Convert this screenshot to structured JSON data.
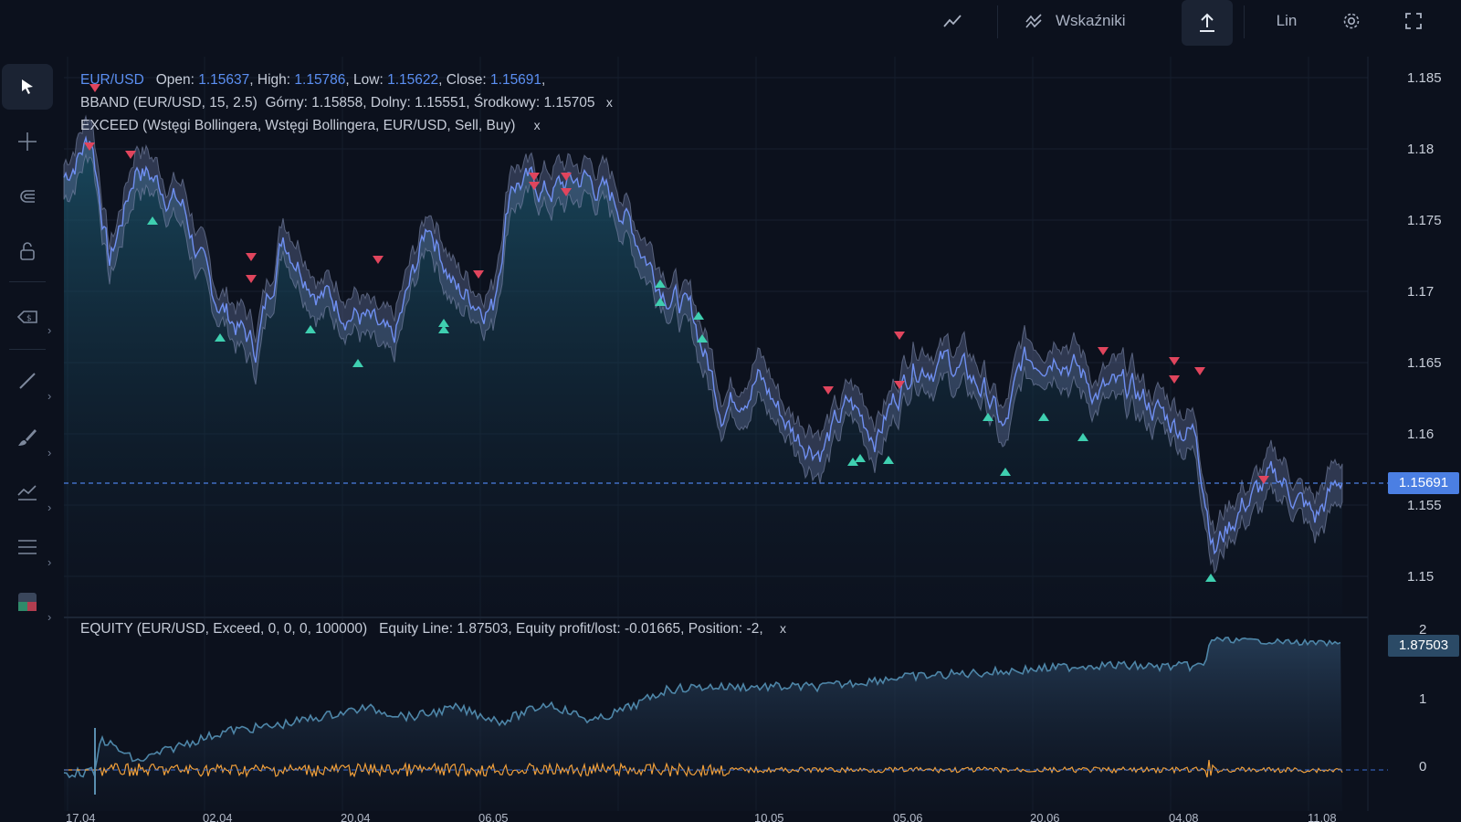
{
  "toolbar": {
    "indicators_label": "Wskaźniki",
    "scale_label": "Lin"
  },
  "left_tools": [
    "cursor-icon",
    "crosshair-icon",
    "magnet-icon",
    "lock-icon",
    "price-label-icon",
    "trendline-icon",
    "brush-icon",
    "indicator-icon",
    "lines-icon",
    "template-icon"
  ],
  "legend": {
    "symbol": "EUR/USD",
    "open_label": "Open:",
    "open": "1.15637",
    "high_label": "High:",
    "high": "1.15786",
    "low_label": "Low:",
    "low": "1.15622",
    "close_label": "Close:",
    "close": "1.15691",
    "bband_label": "BBAND (EUR/USD, 15, 2.5)",
    "upper_label": "Górny:",
    "upper": "1.15858",
    "lower_label": "Dolny:",
    "lower": "1.15551",
    "mid_label": "Środkowy:",
    "mid": "1.15705",
    "exceed_label": "EXCEED (Wstęgi Bollingera, Wstęgi Bollingera, EUR/USD, Sell, Buy)",
    "close_x": "x"
  },
  "equity_legend": {
    "label": "EQUITY (EUR/USD, Exceed, 0, 0, 0, 100000)",
    "equity_line_label": "Equity Line:",
    "equity_line": "1.87503",
    "profit_label": "Equity profit/lost:",
    "profit": "-0.01665",
    "position_label": "Position:",
    "position": "-2,",
    "close_x": "x"
  },
  "price_axis": [
    "1.185",
    "1.18",
    "1.175",
    "1.17",
    "1.165",
    "1.16",
    "1.155",
    "1.15"
  ],
  "equity_axis": [
    "2",
    "1",
    "0"
  ],
  "current_price_tag": "1.15691",
  "current_equity_tag": "1.87503",
  "time_axis": [
    "17.04",
    "02.04",
    "20.04",
    "06.05",
    "10.05",
    "05.06",
    "20.06",
    "04.08",
    "11.08"
  ],
  "colors": {
    "background": "#0c111d",
    "price_line": "#6f8ff0",
    "band_fill": "#5a6890",
    "sell_marker": "#e0455d",
    "buy_marker": "#3fcfb0",
    "equity_line": "#4e86a8",
    "profit_line": "#f2a03a",
    "price_tag": "#4b7fe3",
    "equity_tag": "#2b4a66"
  }
}
